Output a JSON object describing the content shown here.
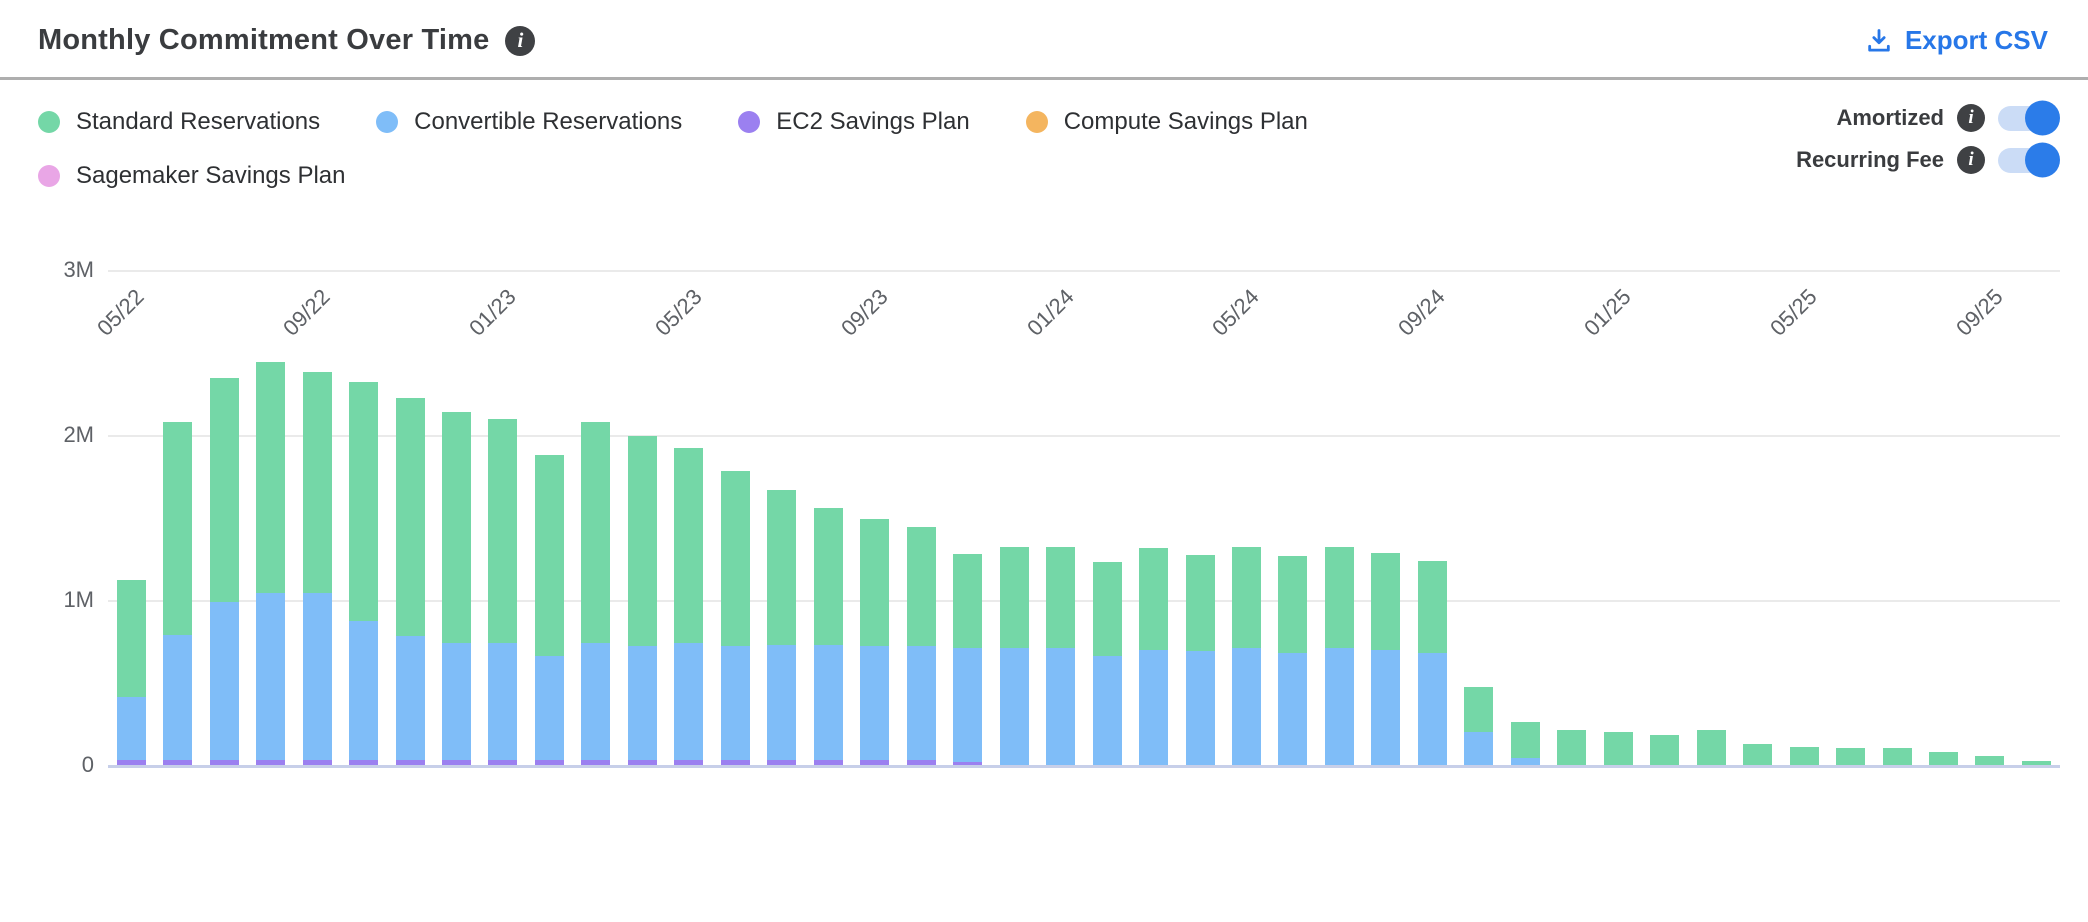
{
  "header": {
    "title": "Monthly Commitment Over Time",
    "export_label": "Export CSV"
  },
  "colors": {
    "standard": "#74d7a7",
    "convertible": "#7fbdf8",
    "ec2_sp": "#9b80f0",
    "compute_sp": "#f4b55f",
    "sagemaker_sp": "#e9a6e6",
    "accent_blue": "#2777e8",
    "toggle_track": "#cbdcf6",
    "toggle_knob": "#2b7ce9"
  },
  "legend": [
    {
      "label": "Standard Reservations",
      "color": "#74d7a7"
    },
    {
      "label": "Convertible Reservations",
      "color": "#7fbdf8"
    },
    {
      "label": "EC2 Savings Plan",
      "color": "#9b80f0"
    },
    {
      "label": "Compute Savings Plan",
      "color": "#f4b55f"
    },
    {
      "label": "Sagemaker Savings Plan",
      "color": "#e9a6e6"
    }
  ],
  "toggles": [
    {
      "label": "Amortized",
      "on": true
    },
    {
      "label": "Recurring Fee",
      "on": true
    }
  ],
  "chart_data": {
    "type": "bar",
    "stacked": true,
    "unit": "M (millions USD)",
    "ylim": [
      0,
      3
    ],
    "yticks": [
      "0",
      "1M",
      "2M",
      "3M"
    ],
    "grid": true,
    "x": [
      "05/22",
      "06/22",
      "07/22",
      "08/22",
      "09/22",
      "10/22",
      "11/22",
      "12/22",
      "01/23",
      "02/23",
      "03/23",
      "04/23",
      "05/23",
      "06/23",
      "07/23",
      "08/23",
      "09/23",
      "10/23",
      "11/23",
      "12/23",
      "01/24",
      "02/24",
      "03/24",
      "04/24",
      "05/24",
      "06/24",
      "07/24",
      "08/24",
      "09/24",
      "10/24",
      "11/24",
      "12/24",
      "01/25",
      "02/25",
      "03/25",
      "04/25",
      "05/25",
      "06/25",
      "07/25",
      "08/25",
      "09/25",
      "10/25"
    ],
    "tick_labels": [
      "05/22",
      "09/22",
      "01/23",
      "05/23",
      "09/23",
      "01/24",
      "05/24",
      "09/24",
      "01/25",
      "05/25",
      "09/25"
    ],
    "tick_every": 4,
    "stack_order": [
      "EC2 Savings Plan",
      "Convertible Reservations",
      "Standard Reservations",
      "Compute Savings Plan",
      "Sagemaker Savings Plan"
    ],
    "series": [
      {
        "name": "EC2 Savings Plan",
        "color": "#9b80f0",
        "values": [
          0.03,
          0.03,
          0.03,
          0.03,
          0.03,
          0.03,
          0.03,
          0.03,
          0.03,
          0.03,
          0.03,
          0.03,
          0.03,
          0.03,
          0.03,
          0.03,
          0.03,
          0.03,
          0.02,
          0,
          0,
          0,
          0,
          0,
          0,
          0,
          0,
          0,
          0,
          0,
          0,
          0,
          0,
          0,
          0,
          0,
          0,
          0,
          0,
          0,
          0,
          0
        ]
      },
      {
        "name": "Convertible Reservations",
        "color": "#7fbdf8",
        "values": [
          0.38,
          0.76,
          0.96,
          1.01,
          1.01,
          0.84,
          0.75,
          0.71,
          0.71,
          0.63,
          0.71,
          0.69,
          0.71,
          0.69,
          0.7,
          0.7,
          0.69,
          0.69,
          0.69,
          0.71,
          0.71,
          0.66,
          0.7,
          0.69,
          0.71,
          0.68,
          0.71,
          0.7,
          0.68,
          0.2,
          0.04,
          0,
          0,
          0,
          0,
          0,
          0,
          0,
          0,
          0,
          0,
          0
        ]
      },
      {
        "name": "Standard Reservations",
        "color": "#74d7a7",
        "values": [
          0.71,
          1.29,
          1.36,
          1.4,
          1.34,
          1.45,
          1.44,
          1.4,
          1.36,
          1.22,
          1.34,
          1.27,
          1.18,
          1.06,
          0.94,
          0.83,
          0.77,
          0.72,
          0.57,
          0.61,
          0.61,
          0.57,
          0.62,
          0.58,
          0.61,
          0.59,
          0.61,
          0.59,
          0.56,
          0.27,
          0.22,
          0.21,
          0.2,
          0.18,
          0.21,
          0.13,
          0.11,
          0.1,
          0.1,
          0.08,
          0.055,
          0.025
        ]
      },
      {
        "name": "Compute Savings Plan",
        "color": "#f4b55f",
        "values": [
          0,
          0,
          0,
          0,
          0,
          0,
          0,
          0,
          0,
          0,
          0,
          0,
          0,
          0,
          0,
          0,
          0,
          0,
          0,
          0,
          0,
          0,
          0,
          0,
          0,
          0,
          0,
          0,
          0,
          0,
          0,
          0,
          0,
          0,
          0,
          0,
          0,
          0,
          0,
          0,
          0,
          0
        ]
      },
      {
        "name": "Sagemaker Savings Plan",
        "color": "#e9a6e6",
        "values": [
          0,
          0,
          0,
          0,
          0,
          0,
          0,
          0,
          0,
          0,
          0,
          0,
          0,
          0,
          0,
          0,
          0,
          0,
          0,
          0,
          0,
          0,
          0,
          0,
          0,
          0,
          0,
          0,
          0,
          0,
          0,
          0,
          0,
          0,
          0,
          0,
          0,
          0,
          0,
          0,
          0,
          0
        ]
      }
    ]
  }
}
